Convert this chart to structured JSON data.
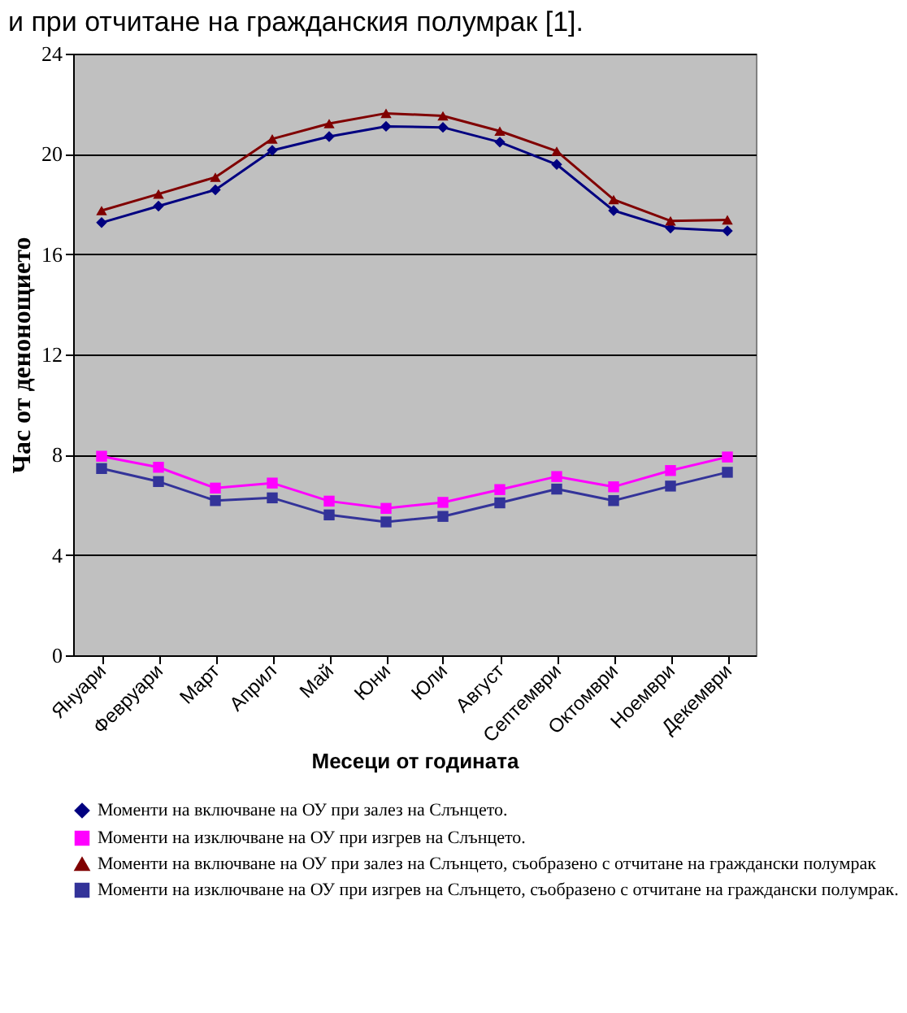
{
  "chart_data": {
    "type": "line",
    "title": "и при отчитане на гражданския полумрак [1].",
    "xlabel": "Месеци от годината",
    "ylabel": "Час от денонощието",
    "categories": [
      "Януари",
      "Февруари",
      "Март",
      "Април",
      "Май",
      "Юни",
      "Юли",
      "Август",
      "Септември",
      "Октомври",
      "Ноември",
      "Декември"
    ],
    "series": [
      {
        "name": "Моменти на включване на ОУ при залез на Слънцето.",
        "color": "#000080",
        "marker": "diamond",
        "values": [
          17.26,
          17.92,
          18.57,
          20.14,
          20.69,
          21.1,
          21.06,
          20.47,
          19.58,
          17.74,
          17.04,
          16.93
        ]
      },
      {
        "name": "Моменти на изключване на ОУ при изгрев на Слънцето.",
        "color": "#ff00ff",
        "marker": "square",
        "values": [
          7.94,
          7.5,
          6.67,
          6.87,
          6.15,
          5.86,
          6.1,
          6.61,
          7.13,
          6.72,
          7.37,
          7.91
        ]
      },
      {
        "name": "Моменти на включване на ОУ при залез на Слънцето, съобразено с отчитане  на граждански полумрак",
        "color": "#800000",
        "marker": "triangle",
        "values": [
          17.74,
          18.4,
          19.07,
          20.6,
          21.21,
          21.62,
          21.52,
          20.91,
          20.11,
          18.18,
          17.33,
          17.37
        ]
      },
      {
        "name": "Моменти на изключване на ОУ при изгрев на Слънцето, съобразено с отчитане на граждански полумрак.",
        "color": "#333399",
        "marker": "square",
        "values": [
          7.45,
          6.93,
          6.17,
          6.28,
          5.6,
          5.32,
          5.54,
          6.08,
          6.63,
          6.17,
          6.75,
          7.3
        ]
      }
    ],
    "ylim": [
      0,
      24
    ],
    "yticks": [
      0,
      4,
      8,
      12,
      16,
      20,
      24
    ],
    "grid": "y",
    "legend": "bottom",
    "line_style": "solid"
  }
}
